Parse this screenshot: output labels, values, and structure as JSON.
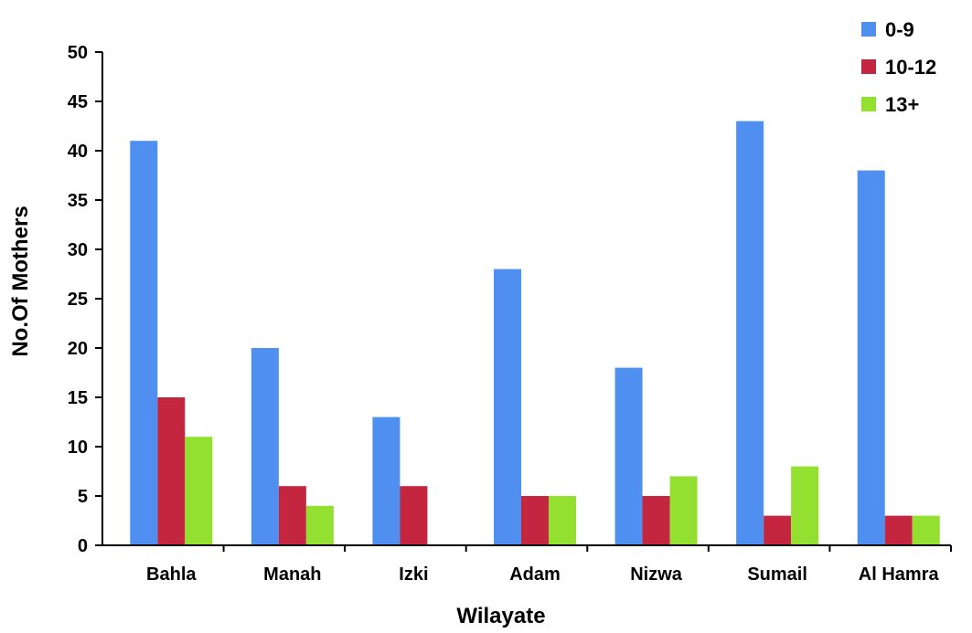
{
  "chart_data": {
    "type": "bar",
    "title": "",
    "xlabel": "Wilayate",
    "ylabel": "No.Of  Mothers",
    "ylim": [
      0,
      50
    ],
    "ytick_step": 5,
    "grid": false,
    "legend_position": "top-right",
    "categories": [
      "Bahla",
      "Manah",
      "Izki",
      "Adam",
      "Nizwa",
      "Sumail",
      "Al Hamra"
    ],
    "series": [
      {
        "name": "0-9",
        "color": "#4f8ff0",
        "values": [
          41,
          20,
          13,
          28,
          18,
          43,
          38
        ]
      },
      {
        "name": "10-12",
        "color": "#c4263f",
        "values": [
          15,
          6,
          6,
          5,
          5,
          3,
          3
        ]
      },
      {
        "name": "13+",
        "color": "#93e030",
        "values": [
          11,
          4,
          0,
          5,
          7,
          8,
          3
        ]
      }
    ]
  }
}
